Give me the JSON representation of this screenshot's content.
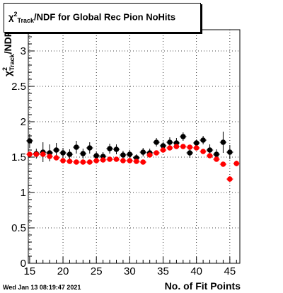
{
  "title": {
    "prefix": "χ",
    "sup": "2",
    "sub": "Track",
    "suffix": "/NDF for Global Rec Pion NoHits"
  },
  "ylabel": {
    "prefix": "χ",
    "sup": "2",
    "sub": "Track",
    "suffix": "/NDF"
  },
  "xlabel": "No. of Fit Points",
  "date_stamp": "Wed Jan 13 08:19:47 2021",
  "colors": {
    "series_black": "#000000",
    "series_red": "#ff0000",
    "grid": "#000000"
  },
  "chart_data": {
    "type": "scatter",
    "xlim": [
      14.8,
      46.5
    ],
    "ylim": [
      0,
      3.3
    ],
    "xticks": [
      15,
      20,
      25,
      30,
      35,
      40,
      45
    ],
    "yticks": [
      0,
      0.5,
      1,
      1.5,
      2,
      2.5,
      3
    ],
    "ytick_labels": [
      "0",
      "0.5",
      "1",
      "1.5",
      "2",
      "2.5",
      "3"
    ],
    "grid": true,
    "series": [
      {
        "color": "#000000",
        "x": [
          15,
          16,
          17,
          18,
          19,
          20,
          21,
          22,
          23,
          24,
          25,
          26,
          27,
          28,
          29,
          30,
          31,
          32,
          33,
          34,
          35,
          36,
          37,
          38,
          39,
          40,
          41,
          42,
          43,
          44,
          45
        ],
        "y": [
          1.73,
          1.55,
          1.57,
          1.56,
          1.6,
          1.56,
          1.54,
          1.64,
          1.55,
          1.63,
          1.52,
          1.51,
          1.62,
          1.61,
          1.53,
          1.54,
          1.49,
          1.57,
          1.56,
          1.71,
          1.66,
          1.71,
          1.7,
          1.79,
          1.56,
          1.7,
          1.74,
          1.6,
          1.54,
          1.71,
          1.57
        ],
        "yerr": [
          0.1,
          0.07,
          0.14,
          0.12,
          0.1,
          0.07,
          0.07,
          0.09,
          0.07,
          0.08,
          0.06,
          0.06,
          0.07,
          0.07,
          0.06,
          0.06,
          0.05,
          0.06,
          0.06,
          0.06,
          0.06,
          0.07,
          0.07,
          0.06,
          0.07,
          0.05,
          0.06,
          0.08,
          0.07,
          0.15,
          0.1
        ]
      },
      {
        "color": "#ff0000",
        "x": [
          15,
          16,
          17,
          18,
          19,
          20,
          21,
          22,
          23,
          24,
          25,
          26,
          27,
          28,
          29,
          30,
          31,
          32,
          33,
          34,
          35,
          36,
          37,
          38,
          39,
          40,
          41,
          42,
          43,
          44,
          45,
          46
        ],
        "y": [
          1.54,
          1.54,
          1.54,
          1.51,
          1.49,
          1.45,
          1.44,
          1.43,
          1.43,
          1.43,
          1.45,
          1.46,
          1.47,
          1.47,
          1.45,
          1.45,
          1.44,
          1.43,
          1.53,
          1.56,
          1.6,
          1.63,
          1.65,
          1.65,
          1.64,
          1.63,
          1.58,
          1.52,
          1.47,
          1.4,
          1.19,
          1.41
        ],
        "yerr": [
          0.03,
          0.03,
          0.03,
          0.03,
          0.03,
          0.02,
          0.02,
          0.02,
          0.02,
          0.02,
          0.02,
          0.02,
          0.02,
          0.02,
          0.02,
          0.02,
          0.02,
          0.02,
          0.02,
          0.02,
          0.02,
          0.02,
          0.02,
          0.02,
          0.02,
          0.02,
          0.02,
          0.02,
          0.03,
          0.03,
          0.04,
          0.04
        ]
      }
    ]
  }
}
